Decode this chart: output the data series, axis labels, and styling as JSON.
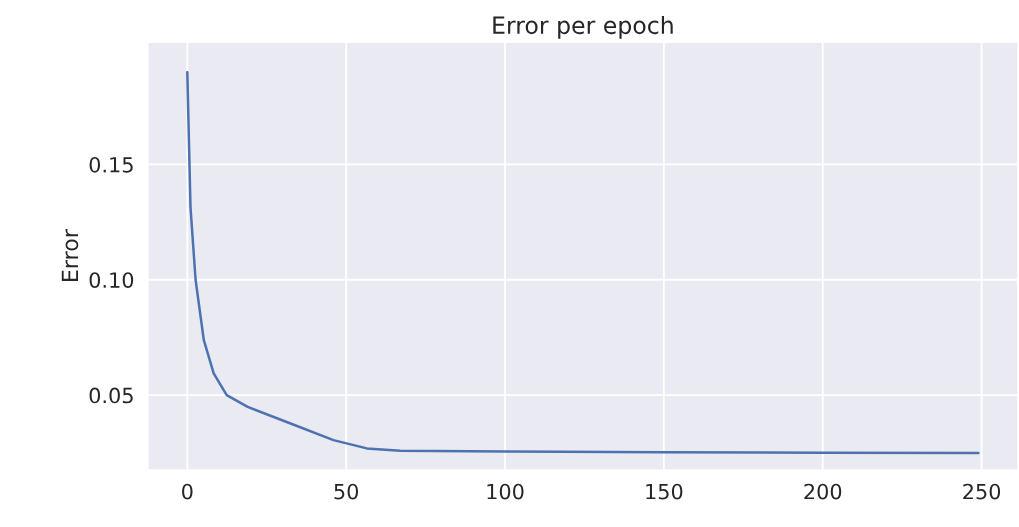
{
  "chart_data": {
    "type": "line",
    "title": "Error per epoch",
    "ylabel": "Error",
    "x": [
      0,
      1,
      2.6,
      5.2,
      8.3,
      12.4,
      19,
      32.5,
      46,
      56.5,
      67,
      100,
      150,
      200,
      249
    ],
    "series": [
      {
        "color": "#4c72b0",
        "values": [
          0.19,
          0.1315,
          0.1,
          0.0738,
          0.0594,
          0.05,
          0.0449,
          0.0377,
          0.0305,
          0.0269,
          0.0259,
          0.0256,
          0.0252,
          0.025,
          0.0249
        ]
      }
    ],
    "xlim": [
      -12.45,
      261.45
    ],
    "ylim": [
      0.0175,
      0.203
    ],
    "xticks": [
      0,
      50,
      100,
      150,
      200,
      250
    ],
    "yticks": [
      {
        "value": 0.05,
        "label": "0.05"
      },
      {
        "value": 0.1,
        "label": "0.10"
      },
      {
        "value": 0.15,
        "label": "0.15"
      }
    ],
    "grid": true,
    "legend": false
  }
}
